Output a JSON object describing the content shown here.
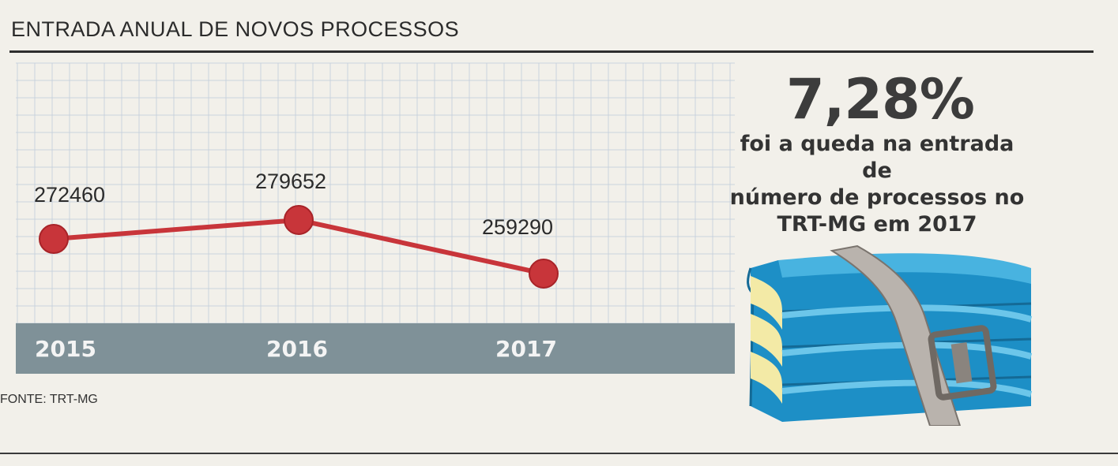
{
  "header": {
    "title": "ENTRADA ANUAL DE NOVOS PROCESSOS"
  },
  "source": "FONTE: TRT-MG",
  "stat": {
    "value": "7,28%",
    "lines": [
      "foi a queda na entrada de",
      "número de processos no",
      "TRT-MG em 2017"
    ]
  },
  "chart_data": {
    "type": "line",
    "title": "ENTRADA ANUAL DE NOVOS PROCESSOS",
    "categories": [
      "2015",
      "2016",
      "2017"
    ],
    "series": [
      {
        "values": [
          272460,
          279652,
          259290
        ]
      }
    ],
    "data_labels": [
      "272460",
      "279652",
      "259290"
    ],
    "grid": true,
    "colors": {
      "line": "#c8353a",
      "year_band": "#7f9198",
      "grid": "#c9d3dd"
    }
  }
}
